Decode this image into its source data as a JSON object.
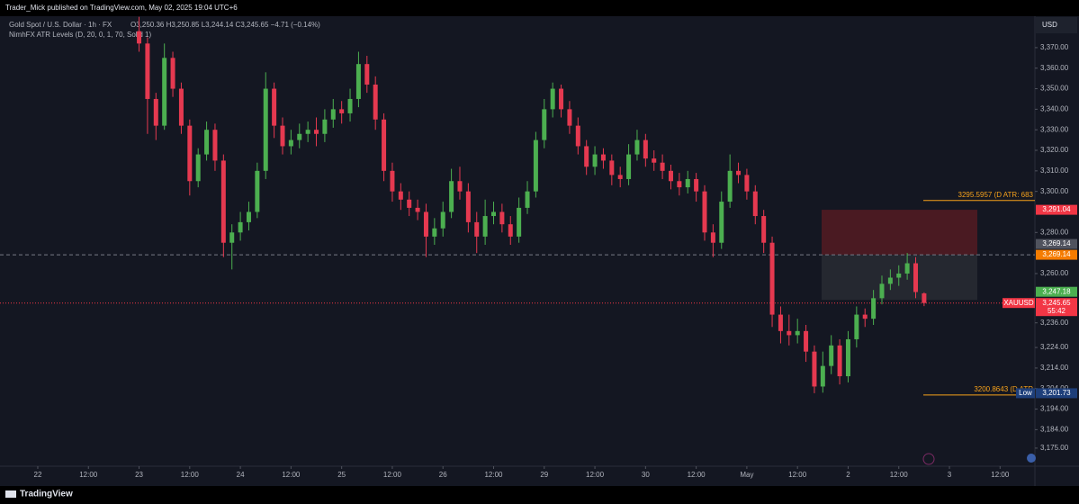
{
  "chart_data": {
    "type": "candlestick",
    "header": "Trader_Mick published on TradingView.com, May 02, 2025 19:04 UTC+6",
    "symbol": "Gold Spot / U.S. Dollar · 1h · FX",
    "ohlc": "O3,250.36 H3,250.85 L3,244.14 C3,245.65 −4.71 (−0.14%)",
    "indicator": "NimhFX ATR Levels (D, 20, 0, 1, 70, Solid 1)",
    "currency": "USD",
    "brand": "TradingView",
    "up_color": "#4caf50",
    "down_color": "#e53950",
    "grid": false,
    "xlim": [
      -8.95,
      236.25
    ],
    "ylim": [
      3166.2,
      3385.3
    ],
    "xticks": [
      {
        "value": 0,
        "label": "22"
      },
      {
        "value": 12,
        "label": "12:00"
      },
      {
        "value": 24,
        "label": "23"
      },
      {
        "value": 36,
        "label": "12:00"
      },
      {
        "value": 48,
        "label": "24"
      },
      {
        "value": 60,
        "label": "12:00"
      },
      {
        "value": 72,
        "label": "25"
      },
      {
        "value": 84,
        "label": "12:00"
      },
      {
        "value": 96,
        "label": "26"
      },
      {
        "value": 108,
        "label": "12:00"
      },
      {
        "value": 120,
        "label": "29"
      },
      {
        "value": 132,
        "label": "12:00"
      },
      {
        "value": 144,
        "label": "30"
      },
      {
        "value": 156,
        "label": "12:00"
      },
      {
        "value": 168,
        "label": "May"
      },
      {
        "value": 180,
        "label": "12:00"
      },
      {
        "value": 192,
        "label": "2"
      },
      {
        "value": 204,
        "label": "12:00"
      },
      {
        "value": 216,
        "label": "3"
      },
      {
        "value": 228,
        "label": "12:00"
      }
    ],
    "yticks": [
      {
        "value": 3370,
        "label": "3,370.00"
      },
      {
        "value": 3360,
        "label": "3,360.00"
      },
      {
        "value": 3350,
        "label": "3,350.00"
      },
      {
        "value": 3340,
        "label": "3,340.00"
      },
      {
        "value": 3330,
        "label": "3,330.00"
      },
      {
        "value": 3320,
        "label": "3,320.00"
      },
      {
        "value": 3310,
        "label": "3,310.00"
      },
      {
        "value": 3300,
        "label": "3,300.00"
      },
      {
        "value": 3280,
        "label": "3,280.00"
      },
      {
        "value": 3260,
        "label": "3,260.00"
      },
      {
        "value": 3236,
        "label": "3,236.00"
      },
      {
        "value": 3224,
        "label": "3,224.00"
      },
      {
        "value": 3214,
        "label": "3,214.00"
      },
      {
        "value": 3204,
        "label": "3,204.00"
      },
      {
        "value": 3194,
        "label": "3,194.00"
      },
      {
        "value": 3184,
        "label": "3,184.00"
      },
      {
        "value": 3175,
        "label": "3,175.00"
      }
    ],
    "x": [
      24,
      26,
      28,
      30,
      32,
      34,
      36,
      38,
      40,
      42,
      44,
      46,
      48,
      50,
      52,
      54,
      56,
      58,
      60,
      62,
      64,
      66,
      68,
      70,
      72,
      74,
      76,
      78,
      80,
      82,
      84,
      86,
      88,
      90,
      92,
      94,
      96,
      98,
      100,
      102,
      104,
      106,
      108,
      110,
      112,
      114,
      116,
      118,
      120,
      122,
      124,
      126,
      128,
      130,
      132,
      134,
      136,
      138,
      140,
      142,
      144,
      146,
      148,
      150,
      152,
      154,
      156,
      158,
      160,
      162,
      164,
      166,
      168,
      170,
      172,
      174,
      176,
      178,
      180,
      182,
      184,
      186,
      188,
      190,
      192,
      194,
      196,
      198,
      200,
      202,
      204,
      206,
      208,
      210
    ],
    "open": [
      3378,
      3372,
      3345,
      3332,
      3365,
      3350,
      3332,
      3305,
      3318,
      3330,
      3315,
      3275,
      3280,
      3285,
      3290,
      3310,
      3350,
      3332,
      3322,
      3325,
      3328,
      3330,
      3328,
      3335,
      3340,
      3338,
      3345,
      3362,
      3352,
      3335,
      3310,
      3300,
      3296,
      3292,
      3290,
      3278,
      3282,
      3290,
      3305,
      3300,
      3285,
      3278,
      3288,
      3290,
      3284,
      3278,
      3292,
      3300,
      3325,
      3340,
      3350,
      3340,
      3332,
      3322,
      3312,
      3318,
      3315,
      3308,
      3306,
      3318,
      3325,
      3316,
      3314,
      3310,
      3305,
      3302,
      3306,
      3300,
      3280,
      3275,
      3295,
      3310,
      3308,
      3300,
      3288,
      3275,
      3240,
      3232,
      3230,
      3232,
      3222,
      3205,
      3215,
      3225,
      3210,
      3228,
      3240,
      3238,
      3248,
      3255,
      3258,
      3260,
      3265,
      3250.36
    ],
    "high": [
      3385,
      3375,
      3348,
      3372,
      3368,
      3353,
      3335,
      3321,
      3334,
      3333,
      3318,
      3284,
      3290,
      3295,
      3314,
      3358,
      3353,
      3336,
      3330,
      3333,
      3334,
      3336,
      3340,
      3345,
      3344,
      3350,
      3368,
      3366,
      3356,
      3338,
      3314,
      3304,
      3300,
      3296,
      3294,
      3287,
      3295,
      3311,
      3312,
      3304,
      3290,
      3296,
      3295,
      3294,
      3288,
      3297,
      3305,
      3329,
      3345,
      3353,
      3352,
      3344,
      3336,
      3325,
      3322,
      3321,
      3318,
      3312,
      3323,
      3330,
      3328,
      3320,
      3318,
      3313,
      3309,
      3310,
      3309,
      3303,
      3284,
      3300,
      3318,
      3314,
      3311,
      3303,
      3291,
      3278,
      3244,
      3240,
      3238,
      3235,
      3225,
      3222,
      3230,
      3228,
      3232,
      3244,
      3243,
      3252,
      3259,
      3262,
      3264,
      3270,
      3268,
      3250.85
    ],
    "low": [
      3368,
      3328,
      3325,
      3330,
      3346,
      3328,
      3298,
      3302,
      3315,
      3310,
      3268,
      3262,
      3276,
      3281,
      3287,
      3306,
      3326,
      3318,
      3318,
      3321,
      3324,
      3322,
      3324,
      3331,
      3333,
      3334,
      3341,
      3348,
      3330,
      3305,
      3295,
      3291,
      3288,
      3286,
      3268,
      3274,
      3278,
      3287,
      3296,
      3280,
      3270,
      3274,
      3284,
      3280,
      3274,
      3275,
      3289,
      3297,
      3321,
      3336,
      3336,
      3328,
      3318,
      3308,
      3308,
      3311,
      3303,
      3302,
      3303,
      3315,
      3312,
      3310,
      3306,
      3301,
      3298,
      3299,
      3295,
      3276,
      3268,
      3272,
      3292,
      3304,
      3296,
      3284,
      3270,
      3234,
      3226,
      3225,
      3226,
      3217,
      3201.73,
      3202,
      3211,
      3206,
      3207,
      3224,
      3234,
      3235,
      3245,
      3252,
      3254,
      3257,
      3248,
      3244.14
    ],
    "close": [
      3372,
      3345,
      3332,
      3365,
      3350,
      3332,
      3305,
      3318,
      3330,
      3315,
      3275,
      3280,
      3285,
      3290,
      3310,
      3350,
      3332,
      3322,
      3325,
      3328,
      3330,
      3328,
      3335,
      3340,
      3338,
      3345,
      3362,
      3352,
      3335,
      3310,
      3300,
      3296,
      3292,
      3290,
      3278,
      3282,
      3290,
      3305,
      3300,
      3285,
      3278,
      3288,
      3290,
      3284,
      3278,
      3292,
      3300,
      3325,
      3340,
      3350,
      3340,
      3332,
      3322,
      3312,
      3318,
      3315,
      3308,
      3306,
      3318,
      3325,
      3316,
      3314,
      3310,
      3305,
      3302,
      3306,
      3300,
      3280,
      3275,
      3295,
      3310,
      3308,
      3300,
      3288,
      3275,
      3240,
      3232,
      3230,
      3232,
      3222,
      3205,
      3215,
      3225,
      3210,
      3228,
      3240,
      3238,
      3248,
      3255,
      3258,
      3260,
      3265,
      3251,
      3245.65
    ],
    "zones": [
      {
        "top": 3291.04,
        "bottom": 3269.14,
        "color": "#4a1a22"
      },
      {
        "top": 3269.14,
        "bottom": 3247.18,
        "color": "#252830"
      }
    ],
    "levels": [
      {
        "value": 3295.5957,
        "label": "3295.5957 (D ATR: 683",
        "color": "#f7a21b"
      },
      {
        "value": 3200.8643,
        "label": "3200.8643 (D ATR",
        "color": "#f7a21b"
      }
    ],
    "price_tags": [
      {
        "value": 3291.04,
        "label": "3,291.04",
        "color": "#f23645"
      },
      {
        "value": 3269.14,
        "label": "3,269.14",
        "color": "#50535e"
      },
      {
        "value": 3269.14,
        "label": "3,269.14",
        "color": "#f57c00"
      },
      {
        "value": 3247.18,
        "label": "3,247.18",
        "color": "#4caf50"
      },
      {
        "value": 3245.65,
        "label": "3,245.65",
        "color": "#f23645",
        "name": "XAUUSD",
        "countdown": "55:42"
      },
      {
        "value": 3201.73,
        "label": "3,201.73",
        "color": "#1e3f7a",
        "name": "Low"
      }
    ]
  }
}
